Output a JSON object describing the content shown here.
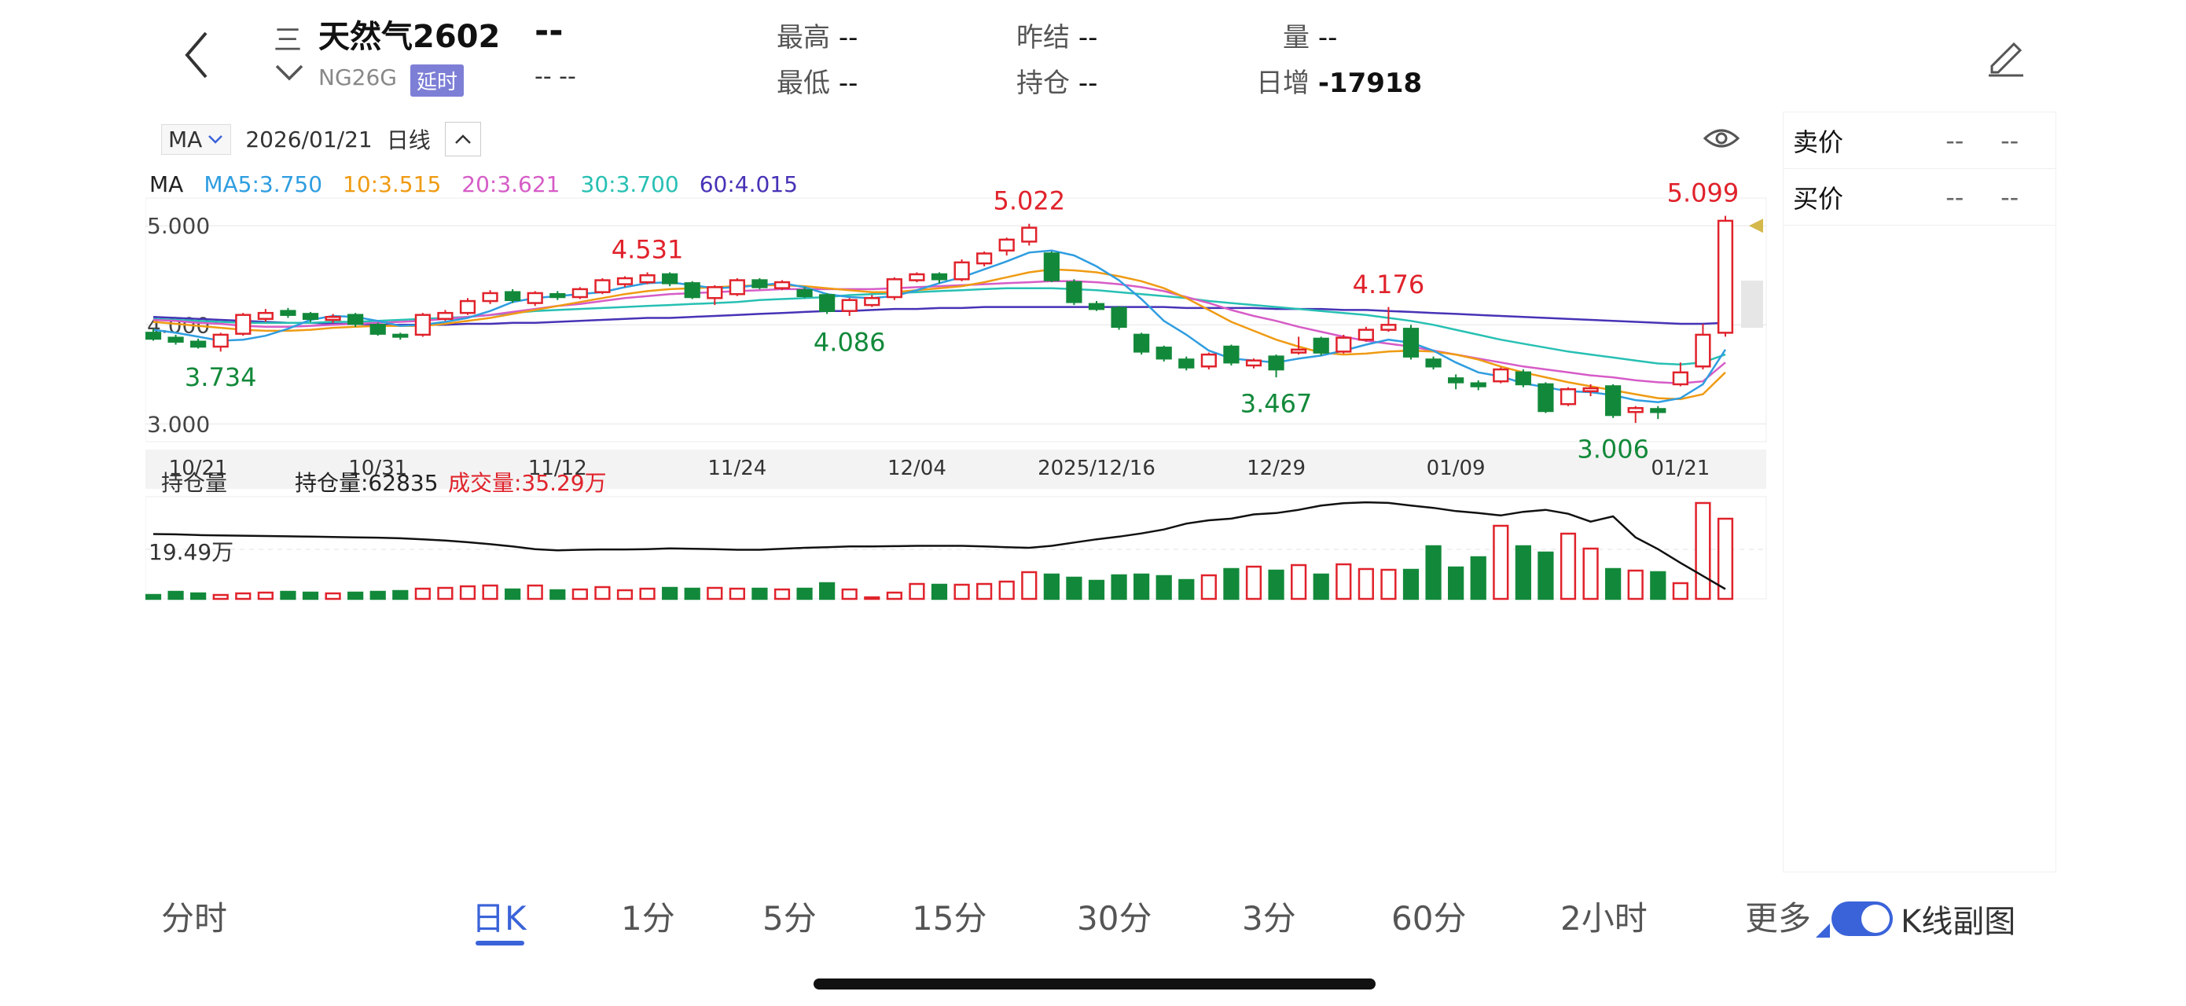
{
  "header": {
    "title": "天然气2602",
    "menu_glyph": "三",
    "code": "NG26G",
    "delay_badge": "延时",
    "last_price": "--",
    "last_change": "--   --",
    "high_label": "最高",
    "high_value": "--",
    "low_label": "最低",
    "low_value": "--",
    "prev_settle_label": "昨结",
    "prev_settle_value": "--",
    "open_interest_label": "持仓",
    "open_interest_value": "--",
    "volume_label": "量",
    "volume_value": "--",
    "daily_inc_label": "日增",
    "daily_inc_value": "-17918"
  },
  "toolbar": {
    "indicator": "MA",
    "date": "2026/01/21",
    "period": "日线"
  },
  "legend": {
    "ma": "MA",
    "ma5": "MA5:3.750",
    "ma10": "10:3.515",
    "ma20": "20:3.621",
    "ma30": "30:3.700",
    "ma60": "60:4.015"
  },
  "colors": {
    "up": "#e0222b",
    "down": "#12893a",
    "ma5": "#2f9de0",
    "ma10": "#ef9b13",
    "ma20": "#d65cc7",
    "ma30": "#27c0b3",
    "ma60": "#4633b6",
    "accent": "#3a63d9"
  },
  "order_book": {
    "sell_label": "卖价",
    "sell_p": "--",
    "sell_v": "--",
    "buy_label": "买价",
    "buy_p": "--",
    "buy_v": "--"
  },
  "sub_chart": {
    "indicator": "持仓量",
    "oi_label": "持仓量:62835",
    "vol_label": "成交量:35.29万",
    "scale_label": "19.49万"
  },
  "tabs": [
    {
      "label": "分时"
    },
    {
      "label": "日K"
    },
    {
      "label": "1分"
    },
    {
      "label": "5分"
    },
    {
      "label": "15分"
    },
    {
      "label": "30分"
    },
    {
      "label": "3分"
    },
    {
      "label": "60分"
    },
    {
      "label": "2小时"
    },
    {
      "label": "更多"
    }
  ],
  "toggle_label": "K线副图",
  "chart_data": {
    "type": "candlestick",
    "y_ticks": [
      "5.000",
      "4.000",
      "3.000"
    ],
    "ylim": [
      2.9,
      5.2
    ],
    "x_ticks": [
      "10/21",
      "10/31",
      "11/12",
      "11/24",
      "12/04",
      "2025/12/16",
      "12/29",
      "01/09",
      "01/21"
    ],
    "annotations": [
      {
        "text": "3.734",
        "index": 3,
        "price": 3.734,
        "kind": "low"
      },
      {
        "text": "4.531",
        "index": 22,
        "price": 4.531,
        "kind": "high"
      },
      {
        "text": "4.086",
        "index": 31,
        "price": 4.086,
        "kind": "low"
      },
      {
        "text": "5.022",
        "index": 39,
        "price": 5.022,
        "kind": "high"
      },
      {
        "text": "3.467",
        "index": 50,
        "price": 3.467,
        "kind": "low"
      },
      {
        "text": "4.176",
        "index": 55,
        "price": 4.176,
        "kind": "high"
      },
      {
        "text": "3.006",
        "index": 65,
        "price": 3.006,
        "kind": "low"
      },
      {
        "text": "5.099",
        "index": 69,
        "price": 5.099,
        "kind": "high"
      }
    ],
    "candles": [
      [
        3.92,
        3.86,
        3.96,
        3.84
      ],
      [
        3.87,
        3.83,
        3.9,
        3.8
      ],
      [
        3.83,
        3.78,
        3.86,
        3.76
      ],
      [
        3.78,
        3.9,
        3.92,
        3.73
      ],
      [
        3.91,
        4.1,
        4.12,
        3.89
      ],
      [
        4.06,
        4.12,
        4.16,
        4.03
      ],
      [
        4.14,
        4.1,
        4.17,
        4.07
      ],
      [
        4.11,
        4.06,
        4.13,
        4.03
      ],
      [
        4.05,
        4.08,
        4.11,
        4.02
      ],
      [
        4.1,
        4.01,
        4.12,
        3.98
      ],
      [
        4.0,
        3.91,
        4.02,
        3.89
      ],
      [
        3.9,
        3.88,
        3.92,
        3.85
      ],
      [
        3.9,
        4.1,
        4.12,
        3.88
      ],
      [
        4.06,
        4.12,
        4.15,
        4.04
      ],
      [
        4.12,
        4.24,
        4.27,
        4.1
      ],
      [
        4.24,
        4.32,
        4.35,
        4.21
      ],
      [
        4.33,
        4.25,
        4.36,
        4.22
      ],
      [
        4.22,
        4.32,
        4.34,
        4.19
      ],
      [
        4.31,
        4.28,
        4.34,
        4.25
      ],
      [
        4.28,
        4.36,
        4.38,
        4.26
      ],
      [
        4.33,
        4.45,
        4.47,
        4.31
      ],
      [
        4.41,
        4.47,
        4.49,
        4.38
      ],
      [
        4.43,
        4.5,
        4.53,
        4.41
      ],
      [
        4.51,
        4.42,
        4.53,
        4.39
      ],
      [
        4.42,
        4.28,
        4.44,
        4.26
      ],
      [
        4.27,
        4.38,
        4.4,
        4.2
      ],
      [
        4.31,
        4.45,
        4.47,
        4.29
      ],
      [
        4.45,
        4.38,
        4.47,
        4.36
      ],
      [
        4.37,
        4.43,
        4.45,
        4.35
      ],
      [
        4.35,
        4.29,
        4.38,
        4.27
      ],
      [
        4.3,
        4.14,
        4.32,
        4.11
      ],
      [
        4.14,
        4.25,
        4.27,
        4.09
      ],
      [
        4.2,
        4.27,
        4.3,
        4.18
      ],
      [
        4.28,
        4.46,
        4.48,
        4.25
      ],
      [
        4.45,
        4.51,
        4.53,
        4.43
      ],
      [
        4.51,
        4.46,
        4.53,
        4.42
      ],
      [
        4.46,
        4.63,
        4.66,
        4.44
      ],
      [
        4.62,
        4.72,
        4.74,
        4.59
      ],
      [
        4.75,
        4.86,
        4.88,
        4.7
      ],
      [
        4.84,
        4.98,
        5.02,
        4.8
      ],
      [
        4.72,
        4.45,
        4.74,
        4.43
      ],
      [
        4.43,
        4.23,
        4.46,
        4.2
      ],
      [
        4.21,
        4.16,
        4.24,
        4.14
      ],
      [
        4.17,
        3.98,
        4.19,
        3.95
      ],
      [
        3.9,
        3.73,
        3.92,
        3.7
      ],
      [
        3.77,
        3.66,
        3.79,
        3.63
      ],
      [
        3.65,
        3.57,
        3.68,
        3.54
      ],
      [
        3.58,
        3.7,
        3.72,
        3.55
      ],
      [
        3.78,
        3.62,
        3.8,
        3.59
      ],
      [
        3.59,
        3.64,
        3.66,
        3.56
      ],
      [
        3.68,
        3.55,
        3.7,
        3.47
      ],
      [
        3.72,
        3.75,
        3.88,
        3.7
      ],
      [
        3.86,
        3.72,
        3.88,
        3.69
      ],
      [
        3.73,
        3.87,
        3.9,
        3.71
      ],
      [
        3.85,
        3.95,
        3.98,
        3.83
      ],
      [
        3.95,
        4.0,
        4.18,
        3.93
      ],
      [
        3.96,
        3.68,
        4.0,
        3.65
      ],
      [
        3.65,
        3.58,
        3.68,
        3.55
      ],
      [
        3.46,
        3.42,
        3.5,
        3.35
      ],
      [
        3.41,
        3.38,
        3.44,
        3.34
      ],
      [
        3.43,
        3.55,
        3.57,
        3.41
      ],
      [
        3.52,
        3.4,
        3.55,
        3.37
      ],
      [
        3.4,
        3.13,
        3.42,
        3.11
      ],
      [
        3.2,
        3.35,
        3.37,
        3.18
      ],
      [
        3.33,
        3.36,
        3.4,
        3.28
      ],
      [
        3.38,
        3.09,
        3.4,
        3.06
      ],
      [
        3.12,
        3.16,
        3.18,
        3.01
      ],
      [
        3.15,
        3.12,
        3.18,
        3.05
      ],
      [
        3.4,
        3.52,
        3.62,
        3.38
      ],
      [
        3.58,
        3.9,
        4.01,
        3.55
      ],
      [
        3.92,
        5.05,
        5.1,
        3.88
      ]
    ],
    "ma_lines": {
      "ma5": [
        3.95,
        3.92,
        3.88,
        3.84,
        3.85,
        3.89,
        3.96,
        4.05,
        4.09,
        4.08,
        4.04,
        3.99,
        4.0,
        4.03,
        4.07,
        4.14,
        4.23,
        4.27,
        4.29,
        4.31,
        4.33,
        4.38,
        4.42,
        4.43,
        4.4,
        4.37,
        4.38,
        4.4,
        4.42,
        4.38,
        4.31,
        4.28,
        4.27,
        4.29,
        4.35,
        4.42,
        4.48,
        4.56,
        4.64,
        4.73,
        4.75,
        4.7,
        4.59,
        4.45,
        4.26,
        4.04,
        3.9,
        3.74,
        3.66,
        3.64,
        3.62,
        3.66,
        3.69,
        3.74,
        3.8,
        3.85,
        3.82,
        3.74,
        3.62,
        3.52,
        3.48,
        3.41,
        3.37,
        3.33,
        3.32,
        3.29,
        3.24,
        3.22,
        3.26,
        3.4,
        3.75
      ],
      "ma10": [
        4.03,
        4.01,
        3.99,
        3.97,
        3.95,
        3.94,
        3.94,
        3.95,
        3.97,
        3.98,
        3.99,
        3.99,
        3.99,
        4.01,
        4.04,
        4.07,
        4.11,
        4.15,
        4.19,
        4.23,
        4.27,
        4.31,
        4.34,
        4.36,
        4.37,
        4.38,
        4.39,
        4.4,
        4.4,
        4.39,
        4.37,
        4.35,
        4.33,
        4.33,
        4.35,
        4.37,
        4.39,
        4.43,
        4.48,
        4.53,
        4.56,
        4.55,
        4.53,
        4.49,
        4.44,
        4.37,
        4.27,
        4.15,
        4.03,
        3.94,
        3.85,
        3.78,
        3.72,
        3.7,
        3.71,
        3.73,
        3.74,
        3.73,
        3.7,
        3.65,
        3.58,
        3.52,
        3.47,
        3.42,
        3.38,
        3.34,
        3.3,
        3.26,
        3.25,
        3.3,
        3.52
      ],
      "ma20": [
        4.05,
        4.04,
        4.02,
        4.01,
        3.99,
        3.98,
        3.98,
        3.99,
        4.0,
        4.01,
        4.02,
        4.03,
        4.04,
        4.06,
        4.08,
        4.1,
        4.13,
        4.16,
        4.19,
        4.21,
        4.24,
        4.27,
        4.29,
        4.31,
        4.32,
        4.33,
        4.34,
        4.35,
        4.36,
        4.36,
        4.36,
        4.36,
        4.36,
        4.37,
        4.38,
        4.39,
        4.4,
        4.41,
        4.42,
        4.43,
        4.44,
        4.44,
        4.43,
        4.41,
        4.38,
        4.34,
        4.28,
        4.22,
        4.15,
        4.09,
        4.04,
        3.98,
        3.93,
        3.88,
        3.84,
        3.81,
        3.78,
        3.74,
        3.7,
        3.66,
        3.62,
        3.58,
        3.55,
        3.52,
        3.49,
        3.47,
        3.44,
        3.42,
        3.41,
        3.43,
        3.62
      ],
      "ma30": [
        4.06,
        4.05,
        4.04,
        4.03,
        4.02,
        4.02,
        4.02,
        4.02,
        4.03,
        4.03,
        4.04,
        4.05,
        4.06,
        4.07,
        4.08,
        4.1,
        4.12,
        4.14,
        4.15,
        4.16,
        4.17,
        4.18,
        4.19,
        4.2,
        4.21,
        4.22,
        4.23,
        4.25,
        4.26,
        4.27,
        4.28,
        4.3,
        4.31,
        4.32,
        4.33,
        4.34,
        4.35,
        4.36,
        4.37,
        4.37,
        4.37,
        4.36,
        4.35,
        4.33,
        4.31,
        4.29,
        4.27,
        4.24,
        4.22,
        4.2,
        4.18,
        4.16,
        4.14,
        4.12,
        4.1,
        4.07,
        4.04,
        4.0,
        3.95,
        3.9,
        3.85,
        3.81,
        3.77,
        3.73,
        3.7,
        3.67,
        3.64,
        3.61,
        3.6,
        3.62,
        3.7
      ],
      "ma60": [
        4.08,
        4.07,
        4.06,
        4.05,
        4.04,
        4.03,
        4.02,
        4.02,
        4.01,
        4.01,
        4.0,
        4.0,
        4.0,
        4.0,
        4.01,
        4.01,
        4.02,
        4.02,
        4.03,
        4.04,
        4.05,
        4.06,
        4.07,
        4.07,
        4.08,
        4.09,
        4.1,
        4.11,
        4.12,
        4.13,
        4.14,
        4.14,
        4.15,
        4.16,
        4.16,
        4.17,
        4.17,
        4.18,
        4.18,
        4.18,
        4.18,
        4.18,
        4.18,
        4.18,
        4.18,
        4.18,
        4.17,
        4.17,
        4.17,
        4.17,
        4.16,
        4.16,
        4.16,
        4.15,
        4.15,
        4.14,
        4.13,
        4.12,
        4.11,
        4.1,
        4.09,
        4.08,
        4.07,
        4.06,
        4.05,
        4.04,
        4.03,
        4.02,
        4.01,
        4.01,
        4.02
      ]
    },
    "volume_color_up": [
      false,
      true,
      true,
      true,
      true,
      true,
      true,
      true,
      true,
      true,
      true,
      true,
      true,
      true,
      true,
      true,
      true,
      true,
      true,
      true,
      true,
      true,
      true,
      true,
      true,
      true,
      true,
      true,
      true,
      true,
      true,
      true,
      true,
      true,
      true,
      true,
      true,
      true,
      true,
      true,
      true,
      true,
      true,
      true,
      true,
      true,
      true,
      true,
      true,
      true,
      true,
      true,
      true,
      true,
      true,
      true,
      true,
      true,
      true,
      true,
      true,
      true,
      true,
      true,
      true,
      true,
      true,
      true,
      true,
      true,
      true
    ],
    "volumes": [
      0.1,
      0.18,
      0.14,
      0.1,
      0.14,
      0.16,
      0.18,
      0.16,
      0.14,
      0.16,
      0.18,
      0.2,
      0.26,
      0.28,
      0.32,
      0.34,
      0.24,
      0.34,
      0.22,
      0.24,
      0.3,
      0.22,
      0.26,
      0.28,
      0.26,
      0.28,
      0.26,
      0.26,
      0.24,
      0.26,
      0.4,
      0.24,
      0.04,
      0.16,
      0.38,
      0.36,
      0.36,
      0.38,
      0.44,
      0.68,
      0.62,
      0.54,
      0.46,
      0.6,
      0.62,
      0.58,
      0.48,
      0.6,
      0.76,
      0.82,
      0.72,
      0.86,
      0.62,
      0.88,
      0.76,
      0.74,
      0.74,
      1.34,
      0.8,
      1.06,
      1.86,
      1.34,
      1.18,
      1.66,
      1.28,
      0.76,
      0.72,
      0.68,
      0.4,
      2.44,
      2.04
    ],
    "open_interest": [
      1.98,
      1.97,
      1.95,
      1.94,
      1.93,
      1.92,
      1.91,
      1.9,
      1.89,
      1.88,
      1.87,
      1.85,
      1.82,
      1.78,
      1.73,
      1.67,
      1.6,
      1.52,
      1.48,
      1.5,
      1.51,
      1.51,
      1.52,
      1.54,
      1.53,
      1.52,
      1.5,
      1.5,
      1.53,
      1.56,
      1.58,
      1.6,
      1.6,
      1.61,
      1.62,
      1.62,
      1.62,
      1.6,
      1.58,
      1.56,
      1.62,
      1.72,
      1.82,
      1.9,
      2.0,
      2.12,
      2.3,
      2.4,
      2.45,
      2.58,
      2.62,
      2.72,
      2.85,
      2.92,
      2.95,
      2.93,
      2.85,
      2.78,
      2.68,
      2.62,
      2.55,
      2.66,
      2.72,
      2.6,
      2.36,
      2.52,
      1.88,
      1.52,
      1.1,
      0.7,
      0.3
    ]
  }
}
